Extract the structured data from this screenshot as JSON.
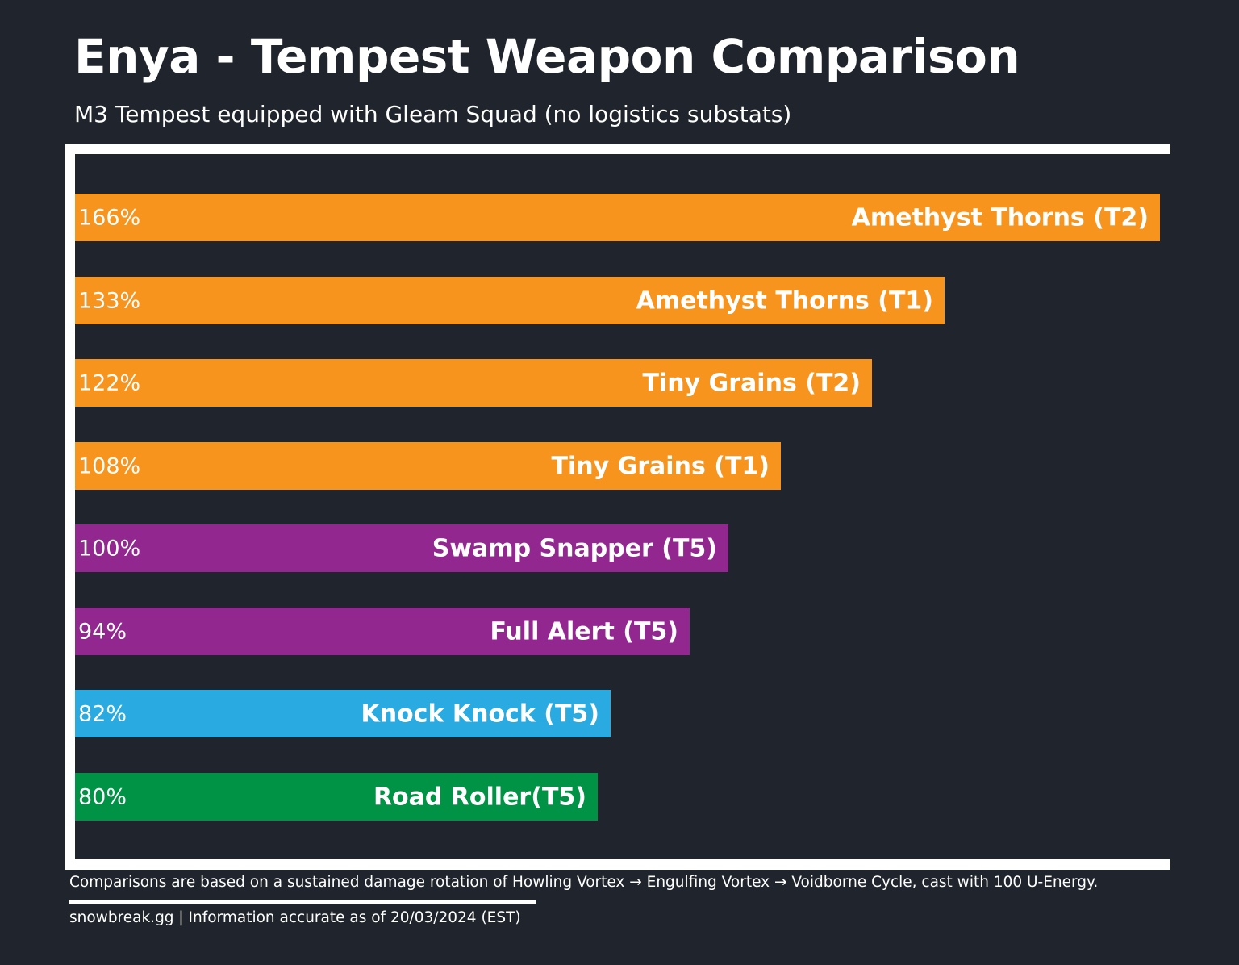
{
  "header": {
    "title": "Enya - Tempest Weapon Comparison",
    "subtitle": "M3 Tempest equipped with Gleam Squad (no logistics substats)"
  },
  "chart_data": {
    "type": "bar",
    "orientation": "horizontal",
    "categories": [
      "Amethyst Thorns (T2)",
      "Amethyst Thorns (T1)",
      "Tiny Grains (T2)",
      "Tiny Grains (T1)",
      "Swamp Snapper (T5)",
      "Full Alert (T5)",
      "Knock Knock (T5)",
      "Road Roller(T5)"
    ],
    "values": [
      166,
      133,
      122,
      108,
      100,
      94,
      82,
      80
    ],
    "value_labels": [
      "166%",
      "133%",
      "122%",
      "108%",
      "100%",
      "94%",
      "82%",
      "80%"
    ],
    "colors": [
      "#f7941d",
      "#f7941d",
      "#f7941d",
      "#f7941d",
      "#92278f",
      "#92278f",
      "#29abe2",
      "#009245"
    ],
    "unit": "%",
    "legend": "none",
    "grid": false
  },
  "footer": {
    "note": "Comparisons are based on a sustained damage rotation of Howling Vortex → Engulfing Vortex → Voidborne Cycle, cast with 100 U-Energy.",
    "credit": "snowbreak.gg | Information accurate as of 20/03/2024 (EST)"
  }
}
